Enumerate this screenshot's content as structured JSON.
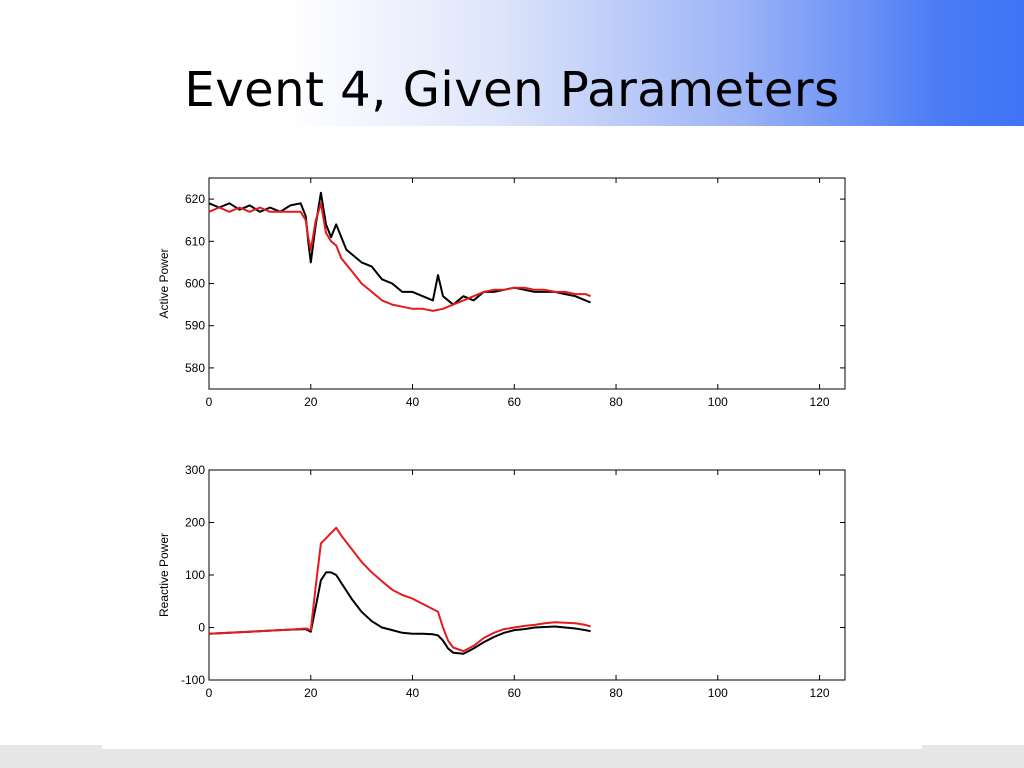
{
  "slide": {
    "title": "Event 4, Given Parameters"
  },
  "colors": {
    "series_black": "#000000",
    "series_red": "#e41a1c",
    "banner_accent": "#3f74f5"
  },
  "chart_data": [
    {
      "type": "line",
      "title": "",
      "xlabel": "",
      "ylabel": "Active Power",
      "xlim": [
        0,
        125
      ],
      "ylim": [
        575,
        625
      ],
      "xticks": [
        0,
        20,
        40,
        60,
        80,
        100,
        120
      ],
      "yticks": [
        580,
        590,
        600,
        610,
        620
      ],
      "grid": false,
      "series": [
        {
          "color": "#000000",
          "points": [
            [
              0,
              619
            ],
            [
              2,
              618
            ],
            [
              4,
              619
            ],
            [
              6,
              617.5
            ],
            [
              8,
              618.5
            ],
            [
              10,
              617
            ],
            [
              12,
              618
            ],
            [
              14,
              617
            ],
            [
              16,
              618.5
            ],
            [
              18,
              619
            ],
            [
              19,
              616
            ],
            [
              19.5,
              610
            ],
            [
              20,
              605
            ],
            [
              21,
              614
            ],
            [
              22,
              621.5
            ],
            [
              23,
              614
            ],
            [
              24,
              611
            ],
            [
              25,
              614
            ],
            [
              26,
              611
            ],
            [
              27,
              608
            ],
            [
              28,
              607
            ],
            [
              30,
              605
            ],
            [
              32,
              604
            ],
            [
              34,
              601
            ],
            [
              36,
              600
            ],
            [
              38,
              598
            ],
            [
              40,
              598
            ],
            [
              42,
              597
            ],
            [
              44,
              596
            ],
            [
              45,
              602
            ],
            [
              46,
              597
            ],
            [
              48,
              595
            ],
            [
              50,
              597
            ],
            [
              52,
              596
            ],
            [
              54,
              598
            ],
            [
              56,
              598
            ],
            [
              58,
              598.5
            ],
            [
              60,
              599
            ],
            [
              62,
              598.5
            ],
            [
              64,
              598
            ],
            [
              66,
              598
            ],
            [
              68,
              598
            ],
            [
              70,
              597.5
            ],
            [
              72,
              597
            ],
            [
              74,
              596
            ],
            [
              75,
              595.5
            ]
          ]
        },
        {
          "color": "#e41a1c",
          "points": [
            [
              0,
              617
            ],
            [
              2,
              618
            ],
            [
              4,
              617
            ],
            [
              6,
              618
            ],
            [
              8,
              617
            ],
            [
              10,
              618
            ],
            [
              12,
              617
            ],
            [
              14,
              617
            ],
            [
              16,
              617
            ],
            [
              18,
              617
            ],
            [
              19,
              615
            ],
            [
              19.5,
              611
            ],
            [
              20,
              608
            ],
            [
              21,
              615
            ],
            [
              22,
              619
            ],
            [
              23,
              612
            ],
            [
              24,
              610
            ],
            [
              25,
              609
            ],
            [
              26,
              606
            ],
            [
              28,
              603
            ],
            [
              30,
              600
            ],
            [
              32,
              598
            ],
            [
              34,
              596
            ],
            [
              36,
              595
            ],
            [
              38,
              594.5
            ],
            [
              40,
              594
            ],
            [
              42,
              594
            ],
            [
              44,
              593.5
            ],
            [
              46,
              594
            ],
            [
              48,
              595
            ],
            [
              50,
              596
            ],
            [
              52,
              597
            ],
            [
              54,
              598
            ],
            [
              56,
              598.5
            ],
            [
              58,
              598.5
            ],
            [
              60,
              599
            ],
            [
              62,
              599
            ],
            [
              64,
              598.5
            ],
            [
              66,
              598.5
            ],
            [
              68,
              598
            ],
            [
              70,
              598
            ],
            [
              72,
              597.5
            ],
            [
              74,
              597.5
            ],
            [
              75,
              597
            ]
          ]
        }
      ]
    },
    {
      "type": "line",
      "title": "",
      "xlabel": "",
      "ylabel": "Reactive Power",
      "xlim": [
        0,
        125
      ],
      "ylim": [
        -100,
        300
      ],
      "xticks": [
        0,
        20,
        40,
        60,
        80,
        100,
        120
      ],
      "yticks": [
        -100,
        0,
        100,
        200,
        300
      ],
      "grid": false,
      "series": [
        {
          "color": "#000000",
          "points": [
            [
              0,
              -12
            ],
            [
              4,
              -10
            ],
            [
              8,
              -8
            ],
            [
              12,
              -6
            ],
            [
              16,
              -4
            ],
            [
              19,
              -3
            ],
            [
              20,
              -8
            ],
            [
              21,
              40
            ],
            [
              22,
              90
            ],
            [
              23,
              105
            ],
            [
              24,
              105
            ],
            [
              25,
              100
            ],
            [
              26,
              85
            ],
            [
              28,
              55
            ],
            [
              30,
              30
            ],
            [
              32,
              12
            ],
            [
              34,
              0
            ],
            [
              36,
              -5
            ],
            [
              38,
              -10
            ],
            [
              40,
              -12
            ],
            [
              42,
              -12
            ],
            [
              44,
              -13
            ],
            [
              45,
              -15
            ],
            [
              46,
              -25
            ],
            [
              47,
              -40
            ],
            [
              48,
              -48
            ],
            [
              50,
              -50
            ],
            [
              52,
              -40
            ],
            [
              54,
              -28
            ],
            [
              56,
              -18
            ],
            [
              58,
              -10
            ],
            [
              60,
              -5
            ],
            [
              62,
              -3
            ],
            [
              64,
              0
            ],
            [
              66,
              1
            ],
            [
              68,
              2
            ],
            [
              70,
              0
            ],
            [
              72,
              -2
            ],
            [
              74,
              -5
            ],
            [
              75,
              -7
            ]
          ]
        },
        {
          "color": "#e41a1c",
          "points": [
            [
              0,
              -12
            ],
            [
              4,
              -10
            ],
            [
              8,
              -8
            ],
            [
              12,
              -6
            ],
            [
              16,
              -4
            ],
            [
              19,
              -2
            ],
            [
              20,
              -5
            ],
            [
              21,
              80
            ],
            [
              22,
              160
            ],
            [
              23,
              170
            ],
            [
              24,
              180
            ],
            [
              25,
              190
            ],
            [
              26,
              175
            ],
            [
              28,
              150
            ],
            [
              30,
              125
            ],
            [
              32,
              105
            ],
            [
              34,
              88
            ],
            [
              36,
              72
            ],
            [
              38,
              62
            ],
            [
              40,
              55
            ],
            [
              42,
              45
            ],
            [
              44,
              35
            ],
            [
              45,
              30
            ],
            [
              46,
              0
            ],
            [
              47,
              -25
            ],
            [
              48,
              -38
            ],
            [
              50,
              -45
            ],
            [
              52,
              -35
            ],
            [
              54,
              -20
            ],
            [
              56,
              -10
            ],
            [
              58,
              -3
            ],
            [
              60,
              0
            ],
            [
              62,
              3
            ],
            [
              64,
              5
            ],
            [
              66,
              8
            ],
            [
              68,
              10
            ],
            [
              70,
              9
            ],
            [
              72,
              8
            ],
            [
              74,
              5
            ],
            [
              75,
              2
            ]
          ]
        }
      ]
    }
  ]
}
